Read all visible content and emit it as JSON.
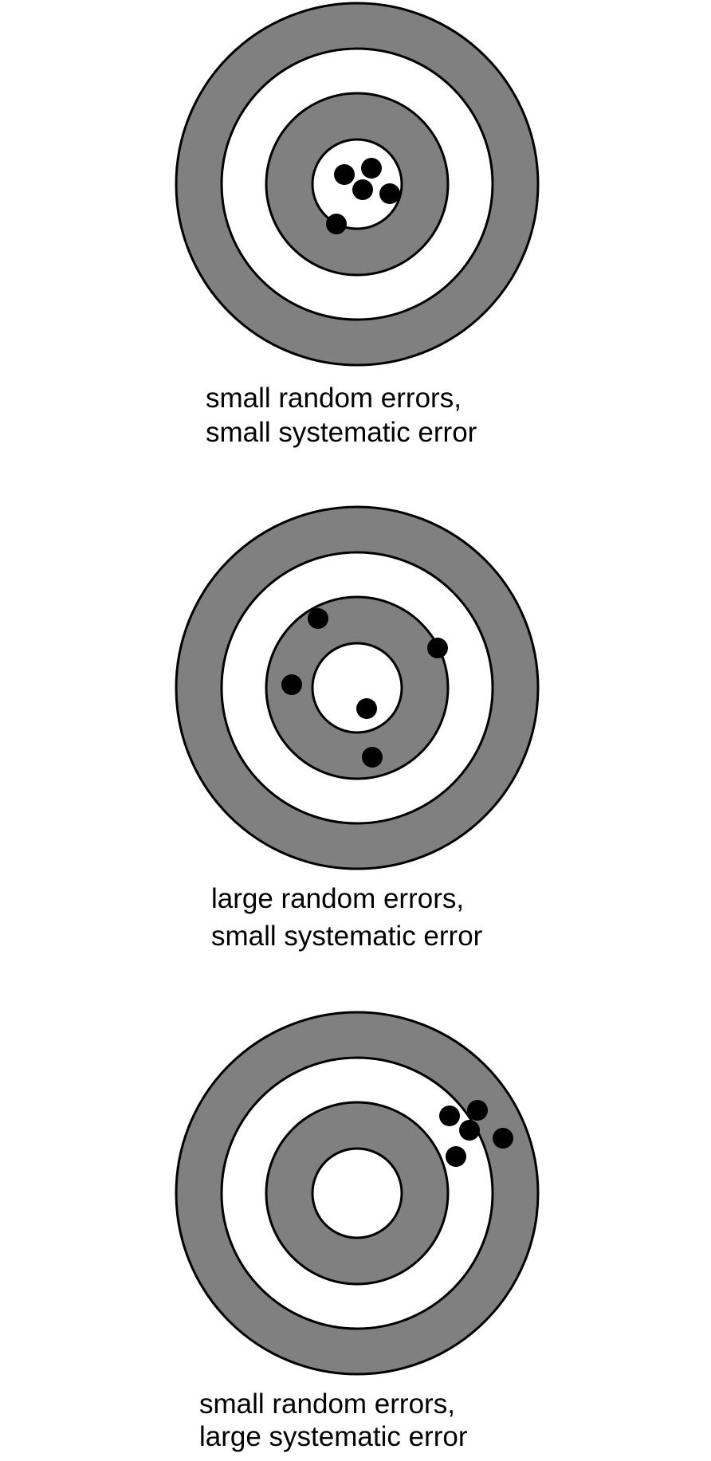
{
  "targets": [
    {
      "caption": [
        "small random errors,",
        "small systematic error"
      ]
    },
    {
      "caption": [
        "large random errors,",
        "small systematic error"
      ]
    },
    {
      "caption": [
        "small random errors,",
        "large systematic error"
      ]
    }
  ]
}
